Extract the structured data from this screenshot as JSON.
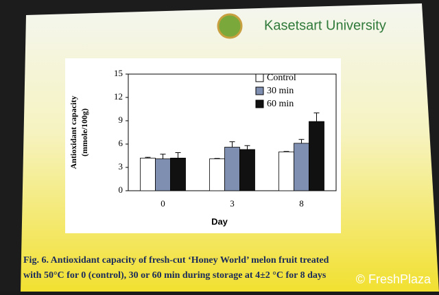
{
  "slide": {
    "logo": "Kasetsart University",
    "watermark": "© FreshPlaza"
  },
  "chart_data": {
    "type": "bar",
    "ylabel": [
      "Antioxidant capacity",
      "(mmole/100g)"
    ],
    "xlabel": "Day",
    "caption": [
      "Fig. 6. Antioxidant capacity of fresh-cut ‘Honey World’ melon fruit treated",
      "with 50°C for 0 (control), 30 or 60 min during storage at 4±2 °C for 8 days"
    ],
    "categories": [
      "0",
      "3",
      "8"
    ],
    "series": [
      {
        "name": "Control",
        "color": "#ffffff",
        "values": [
          4.2,
          4.1,
          5.0
        ],
        "errors": [
          0.1,
          0.05,
          0.05
        ]
      },
      {
        "name": "30 min",
        "color": "#7f8fb2",
        "values": [
          4.1,
          5.6,
          6.1
        ],
        "errors": [
          0.6,
          0.7,
          0.5
        ]
      },
      {
        "name": "60 min",
        "color": "#111111",
        "values": [
          4.2,
          5.3,
          8.9
        ],
        "errors": [
          0.7,
          0.5,
          1.1
        ]
      }
    ],
    "ylim": [
      0,
      15
    ],
    "yticks": [
      0,
      3,
      6,
      9,
      12,
      15
    ],
    "grid": false
  }
}
